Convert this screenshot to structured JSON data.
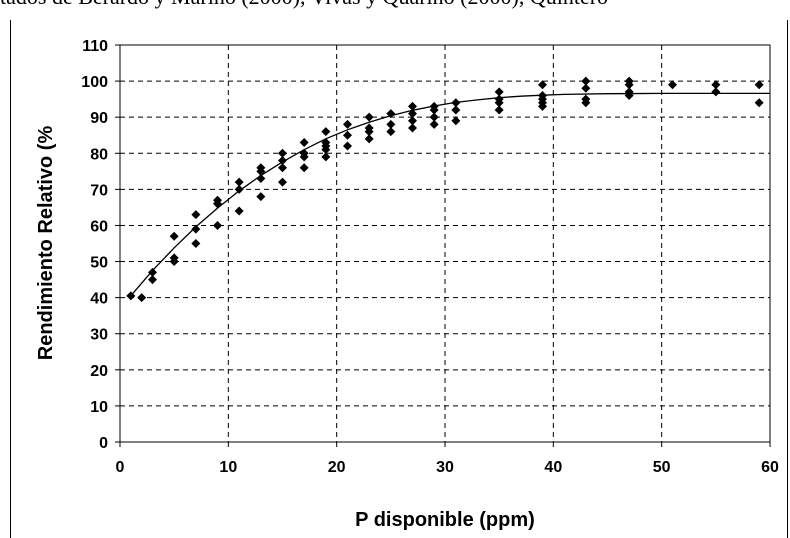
{
  "header_text": "tados de Berardo y Marino (2000), Vivas y Quarino (2000), Quintero",
  "chart_data": {
    "type": "scatter",
    "title": "",
    "xlabel": "P disponible (ppm)",
    "ylabel": "Rendimiento Relativo (%",
    "xlim": [
      0,
      60
    ],
    "ylim": [
      0,
      110
    ],
    "xticks": [
      "0",
      "10",
      "20",
      "30",
      "40",
      "50",
      "60"
    ],
    "yticks": [
      "0",
      "10",
      "20",
      "30",
      "40",
      "50",
      "60",
      "70",
      "80",
      "90",
      "100",
      "110"
    ],
    "grid": true,
    "legend": "none",
    "points": [
      {
        "x": 1,
        "y": 40.5
      },
      {
        "x": 2,
        "y": 40
      },
      {
        "x": 3,
        "y": 45
      },
      {
        "x": 3,
        "y": 47
      },
      {
        "x": 5,
        "y": 50
      },
      {
        "x": 5,
        "y": 51
      },
      {
        "x": 5,
        "y": 57
      },
      {
        "x": 7,
        "y": 55
      },
      {
        "x": 7,
        "y": 59
      },
      {
        "x": 7,
        "y": 63
      },
      {
        "x": 9,
        "y": 60
      },
      {
        "x": 9,
        "y": 66
      },
      {
        "x": 9,
        "y": 67
      },
      {
        "x": 11,
        "y": 64
      },
      {
        "x": 11,
        "y": 70
      },
      {
        "x": 11,
        "y": 72
      },
      {
        "x": 13,
        "y": 68
      },
      {
        "x": 13,
        "y": 73
      },
      {
        "x": 13,
        "y": 75
      },
      {
        "x": 13,
        "y": 76
      },
      {
        "x": 15,
        "y": 72
      },
      {
        "x": 15,
        "y": 76
      },
      {
        "x": 15,
        "y": 78
      },
      {
        "x": 15,
        "y": 80
      },
      {
        "x": 17,
        "y": 76
      },
      {
        "x": 17,
        "y": 79
      },
      {
        "x": 17,
        "y": 80
      },
      {
        "x": 17,
        "y": 83
      },
      {
        "x": 19,
        "y": 79
      },
      {
        "x": 19,
        "y": 81
      },
      {
        "x": 19,
        "y": 82
      },
      {
        "x": 19,
        "y": 83
      },
      {
        "x": 19,
        "y": 86
      },
      {
        "x": 21,
        "y": 82
      },
      {
        "x": 21,
        "y": 85
      },
      {
        "x": 21,
        "y": 88
      },
      {
        "x": 23,
        "y": 84
      },
      {
        "x": 23,
        "y": 86
      },
      {
        "x": 23,
        "y": 87
      },
      {
        "x": 23,
        "y": 90
      },
      {
        "x": 25,
        "y": 86
      },
      {
        "x": 25,
        "y": 88
      },
      {
        "x": 25,
        "y": 91
      },
      {
        "x": 27,
        "y": 87
      },
      {
        "x": 27,
        "y": 89
      },
      {
        "x": 27,
        "y": 91
      },
      {
        "x": 27,
        "y": 93
      },
      {
        "x": 29,
        "y": 88
      },
      {
        "x": 29,
        "y": 90
      },
      {
        "x": 29,
        "y": 92
      },
      {
        "x": 29,
        "y": 93
      },
      {
        "x": 31,
        "y": 89
      },
      {
        "x": 31,
        "y": 92
      },
      {
        "x": 31,
        "y": 94
      },
      {
        "x": 35,
        "y": 92
      },
      {
        "x": 35,
        "y": 94
      },
      {
        "x": 35,
        "y": 95
      },
      {
        "x": 35,
        "y": 97
      },
      {
        "x": 39,
        "y": 93
      },
      {
        "x": 39,
        "y": 94
      },
      {
        "x": 39,
        "y": 95
      },
      {
        "x": 39,
        "y": 96
      },
      {
        "x": 39,
        "y": 99
      },
      {
        "x": 43,
        "y": 94
      },
      {
        "x": 43,
        "y": 95
      },
      {
        "x": 43,
        "y": 98
      },
      {
        "x": 43,
        "y": 100
      },
      {
        "x": 47,
        "y": 96
      },
      {
        "x": 47,
        "y": 97
      },
      {
        "x": 47,
        "y": 99
      },
      {
        "x": 47,
        "y": 100
      },
      {
        "x": 51,
        "y": 99
      },
      {
        "x": 55,
        "y": 97
      },
      {
        "x": 55,
        "y": 99
      },
      {
        "x": 59,
        "y": 94
      },
      {
        "x": 59,
        "y": 99
      }
    ],
    "fit_curve": {
      "name": "",
      "x": [
        1,
        3,
        5,
        7,
        9,
        11,
        13,
        15,
        17,
        19,
        21,
        23,
        25,
        27,
        29,
        31,
        33,
        35,
        37,
        39,
        41,
        45,
        50,
        55,
        60
      ],
      "y": [
        40.5,
        47.5,
        53.8,
        59.6,
        64.8,
        69.6,
        73.8,
        77.6,
        81.0,
        84.0,
        86.5,
        88.6,
        90.4,
        91.9,
        93.1,
        94.1,
        94.8,
        95.4,
        95.8,
        96.1,
        96.3,
        96.5,
        96.6,
        96.6,
        96.6
      ]
    }
  }
}
